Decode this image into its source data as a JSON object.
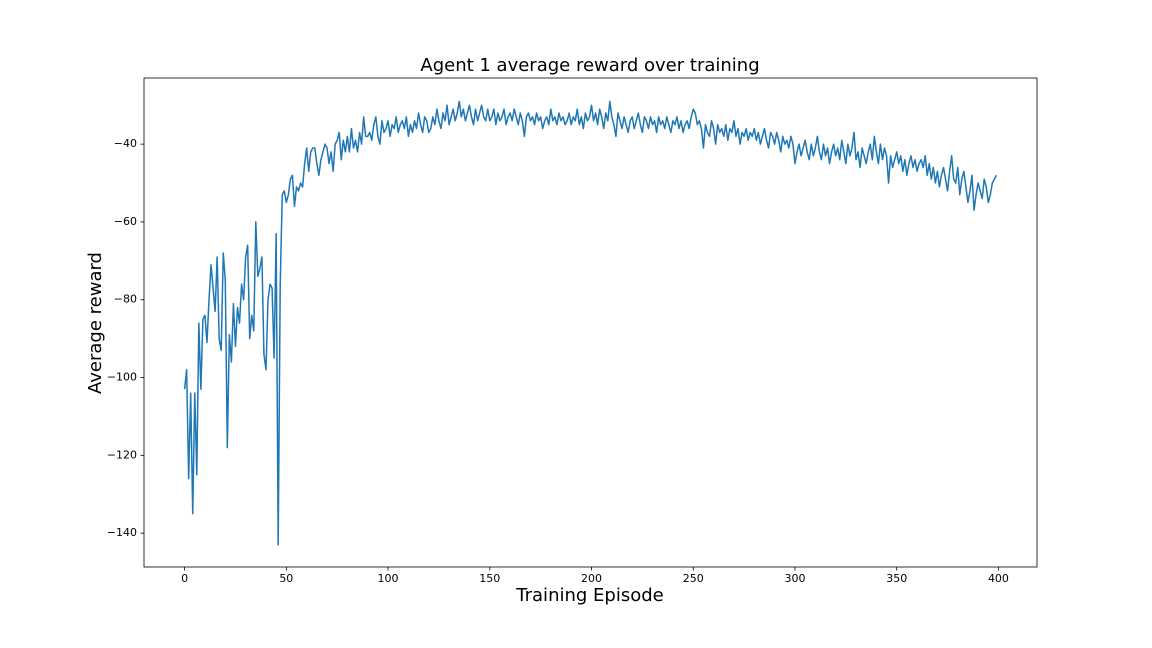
{
  "chart_data": {
    "type": "line",
    "title": "Agent 1 average reward over training",
    "x_label": "Training Episode",
    "y_label": "Average reward",
    "color": "#1f77b4",
    "xlim": [
      -19.95,
      418.95
    ],
    "ylim": [
      -148.7,
      -23.0
    ],
    "xticks": [
      0,
      50,
      100,
      150,
      200,
      250,
      300,
      350,
      400
    ],
    "yticks": [
      {
        "value": -140,
        "label": "−140"
      },
      {
        "value": -120,
        "label": "−120"
      },
      {
        "value": -100,
        "label": "−100"
      },
      {
        "value": -80,
        "label": "−80"
      },
      {
        "value": -60,
        "label": "−60"
      },
      {
        "value": -40,
        "label": "−40"
      }
    ],
    "x": [
      0,
      1,
      2,
      3,
      4,
      5,
      6,
      7,
      8,
      9,
      10,
      11,
      12,
      13,
      14,
      15,
      16,
      17,
      18,
      19,
      20,
      21,
      22,
      23,
      24,
      25,
      26,
      27,
      28,
      29,
      30,
      31,
      32,
      33,
      34,
      35,
      36,
      37,
      38,
      39,
      40,
      41,
      42,
      43,
      44,
      45,
      46,
      47,
      48,
      49,
      50,
      51,
      52,
      53,
      54,
      55,
      56,
      57,
      58,
      59,
      60,
      61,
      62,
      63,
      64,
      65,
      66,
      67,
      68,
      69,
      70,
      71,
      72,
      73,
      74,
      75,
      76,
      77,
      78,
      79,
      80,
      81,
      82,
      83,
      84,
      85,
      86,
      87,
      88,
      89,
      90,
      91,
      92,
      93,
      94,
      95,
      96,
      97,
      98,
      99,
      100,
      101,
      102,
      103,
      104,
      105,
      106,
      107,
      108,
      109,
      110,
      111,
      112,
      113,
      114,
      115,
      116,
      117,
      118,
      119,
      120,
      121,
      122,
      123,
      124,
      125,
      126,
      127,
      128,
      129,
      130,
      131,
      132,
      133,
      134,
      135,
      136,
      137,
      138,
      139,
      140,
      141,
      142,
      143,
      144,
      145,
      146,
      147,
      148,
      149,
      150,
      151,
      152,
      153,
      154,
      155,
      156,
      157,
      158,
      159,
      160,
      161,
      162,
      163,
      164,
      165,
      166,
      167,
      168,
      169,
      170,
      171,
      172,
      173,
      174,
      175,
      176,
      177,
      178,
      179,
      180,
      181,
      182,
      183,
      184,
      185,
      186,
      187,
      188,
      189,
      190,
      191,
      192,
      193,
      194,
      195,
      196,
      197,
      198,
      199,
      200,
      201,
      202,
      203,
      204,
      205,
      206,
      207,
      208,
      209,
      210,
      211,
      212,
      213,
      214,
      215,
      216,
      217,
      218,
      219,
      220,
      221,
      222,
      223,
      224,
      225,
      226,
      227,
      228,
      229,
      230,
      231,
      232,
      233,
      234,
      235,
      236,
      237,
      238,
      239,
      240,
      241,
      242,
      243,
      244,
      245,
      246,
      247,
      248,
      249,
      250,
      251,
      252,
      253,
      254,
      255,
      256,
      257,
      258,
      259,
      260,
      261,
      262,
      263,
      264,
      265,
      266,
      267,
      268,
      269,
      270,
      271,
      272,
      273,
      274,
      275,
      276,
      277,
      278,
      279,
      280,
      281,
      282,
      283,
      284,
      285,
      286,
      287,
      288,
      289,
      290,
      291,
      292,
      293,
      294,
      295,
      296,
      297,
      298,
      299,
      300,
      301,
      302,
      303,
      304,
      305,
      306,
      307,
      308,
      309,
      310,
      311,
      312,
      313,
      314,
      315,
      316,
      317,
      318,
      319,
      320,
      321,
      322,
      323,
      324,
      325,
      326,
      327,
      328,
      329,
      330,
      331,
      332,
      333,
      334,
      335,
      336,
      337,
      338,
      339,
      340,
      341,
      342,
      343,
      344,
      345,
      346,
      347,
      348,
      349,
      350,
      351,
      352,
      353,
      354,
      355,
      356,
      357,
      358,
      359,
      360,
      361,
      362,
      363,
      364,
      365,
      366,
      367,
      368,
      369,
      370,
      371,
      372,
      373,
      374,
      375,
      376,
      377,
      378,
      379,
      380,
      381,
      382,
      383,
      384,
      385,
      386,
      387,
      388,
      389,
      390,
      391,
      392,
      393,
      394,
      395,
      396,
      397,
      398,
      399
    ],
    "values": [
      -103,
      -98,
      -126,
      -104,
      -135,
      -104,
      -125,
      -86,
      -103,
      -85,
      -84,
      -91,
      -80,
      -71,
      -77,
      -83,
      -69,
      -90,
      -93,
      -68,
      -75,
      -118,
      -89,
      -96,
      -81,
      -92,
      -82,
      -86,
      -76,
      -80,
      -69,
      -66,
      -90,
      -84,
      -88,
      -60,
      -74,
      -72,
      -69,
      -94,
      -98,
      -80,
      -76,
      -77,
      -95,
      -63,
      -143,
      -76,
      -53,
      -52,
      -55,
      -53,
      -49,
      -48,
      -56,
      -51,
      -52,
      -50,
      -51,
      -45,
      -41,
      -47,
      -42,
      -41,
      -41,
      -45,
      -48,
      -44,
      -42,
      -40,
      -41,
      -45,
      -42,
      -47,
      -40,
      -39,
      -37,
      -44,
      -39,
      -42,
      -38,
      -42,
      -36,
      -41,
      -39,
      -42,
      -37,
      -40,
      -33,
      -38,
      -38,
      -37,
      -39,
      -35,
      -33,
      -38,
      -40,
      -34,
      -37,
      -36,
      -34,
      -38,
      -35,
      -36,
      -33,
      -37,
      -35,
      -34,
      -36,
      -33,
      -38,
      -35,
      -37,
      -34,
      -36,
      -32,
      -35,
      -37,
      -33,
      -34,
      -37,
      -36,
      -33,
      -35,
      -31,
      -34,
      -36,
      -32,
      -34,
      -30,
      -35,
      -33,
      -31,
      -34,
      -32,
      -29,
      -33,
      -31,
      -34,
      -32,
      -30,
      -33,
      -35,
      -31,
      -34,
      -32,
      -30,
      -33,
      -34,
      -31,
      -34,
      -33,
      -31,
      -35,
      -32,
      -34,
      -33,
      -31,
      -35,
      -33,
      -32,
      -34,
      -31,
      -33,
      -35,
      -32,
      -34,
      -38,
      -33,
      -32,
      -34,
      -33,
      -35,
      -32,
      -34,
      -33,
      -36,
      -34,
      -33,
      -35,
      -31,
      -34,
      -33,
      -35,
      -32,
      -34,
      -33,
      -35,
      -34,
      -32,
      -35,
      -33,
      -34,
      -31,
      -35,
      -33,
      -36,
      -32,
      -34,
      -33,
      -30,
      -34,
      -32,
      -35,
      -31,
      -33,
      -36,
      -32,
      -34,
      -29,
      -33,
      -35,
      -38,
      -32,
      -34,
      -36,
      -33,
      -35,
      -37,
      -34,
      -33,
      -36,
      -34,
      -32,
      -35,
      -37,
      -33,
      -34,
      -36,
      -33,
      -35,
      -34,
      -37,
      -33,
      -35,
      -34,
      -36,
      -33,
      -35,
      -37,
      -34,
      -35,
      -33,
      -36,
      -34,
      -37,
      -35,
      -34,
      -36,
      -33,
      -31,
      -32,
      -35,
      -34,
      -36,
      -41,
      -35,
      -37,
      -38,
      -34,
      -36,
      -40,
      -35,
      -37,
      -36,
      -38,
      -35,
      -39,
      -36,
      -37,
      -34,
      -38,
      -36,
      -40,
      -37,
      -38,
      -36,
      -39,
      -37,
      -38,
      -36,
      -39,
      -37,
      -40,
      -38,
      -36,
      -39,
      -41,
      -37,
      -38,
      -40,
      -37,
      -39,
      -42,
      -38,
      -40,
      -39,
      -41,
      -38,
      -40,
      -45,
      -42,
      -40,
      -43,
      -41,
      -39,
      -42,
      -44,
      -40,
      -43,
      -41,
      -38,
      -42,
      -44,
      -40,
      -43,
      -41,
      -45,
      -42,
      -40,
      -43,
      -41,
      -44,
      -39,
      -42,
      -45,
      -40,
      -43,
      -41,
      -37,
      -44,
      -42,
      -46,
      -41,
      -43,
      -45,
      -42,
      -40,
      -44,
      -38,
      -42,
      -45,
      -40,
      -44,
      -41,
      -43,
      -50,
      -43,
      -46,
      -44,
      -42,
      -45,
      -43,
      -47,
      -44,
      -48,
      -45,
      -43,
      -46,
      -44,
      -47,
      -45,
      -44,
      -46,
      -43,
      -48,
      -45,
      -49,
      -46,
      -50,
      -47,
      -51,
      -48,
      -46,
      -49,
      -52,
      -47,
      -43,
      -49,
      -50,
      -46,
      -53,
      -49,
      -47,
      -51,
      -55,
      -52,
      -48,
      -57,
      -53,
      -50,
      -52,
      -54,
      -49,
      -51,
      -55,
      -53,
      -50,
      -49,
      -48
    ]
  }
}
